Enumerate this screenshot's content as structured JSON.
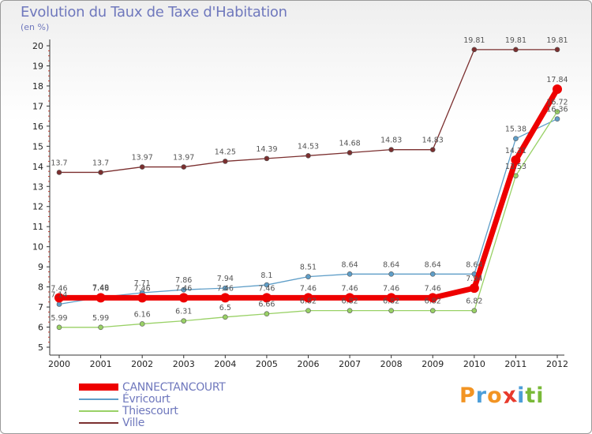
{
  "title": "Evolution du Taux de Taxe d'Habitation",
  "unit_label": "(en %)",
  "brand": {
    "text": "Proxiti",
    "letters": [
      {
        "ch": "P",
        "color": "#f29423"
      },
      {
        "ch": "r",
        "color": "#4c9ed9"
      },
      {
        "ch": "o",
        "color": "#f29423"
      },
      {
        "ch": "x",
        "color": "#e83a2c"
      },
      {
        "ch": "i",
        "color": "#4c9ed9"
      },
      {
        "ch": "t",
        "color": "#79b938"
      },
      {
        "ch": "i",
        "color": "#79b938"
      }
    ]
  },
  "chart_data": {
    "type": "line",
    "title": "Evolution du Taux de Taxe d'Habitation",
    "ylabel": "(en %)",
    "xlabel": "",
    "ylim": [
      5,
      20
    ],
    "yticks": [
      5,
      6,
      7,
      8,
      9,
      10,
      11,
      12,
      13,
      14,
      15,
      16,
      17,
      18,
      19,
      20
    ],
    "categories": [
      "2000",
      "2001",
      "2002",
      "2003",
      "2004",
      "2005",
      "2006",
      "2007",
      "2008",
      "2009",
      "2010",
      "2011",
      "2012"
    ],
    "legend_position": "bottom-left",
    "series": [
      {
        "name": "Ville",
        "color": "#7b2f2f",
        "values": [
          13.7,
          13.7,
          13.97,
          13.97,
          14.25,
          14.39,
          14.53,
          14.68,
          14.83,
          14.83,
          19.81,
          19.81,
          19.81
        ],
        "labels": [
          "13.7",
          "13.7",
          "13.97",
          "13.97",
          "14.25",
          "14.39",
          "14.53",
          "14.68",
          "14.83",
          "14.83",
          "19.81",
          "19.81",
          "19.81"
        ]
      },
      {
        "name": "Évricourt",
        "color": "#5f9ec8",
        "values": [
          7.14,
          7.49,
          7.71,
          7.86,
          7.94,
          8.1,
          8.51,
          8.64,
          8.64,
          8.64,
          8.64,
          15.38,
          16.36
        ],
        "labels": [
          "7.14",
          "7.49",
          "7.71",
          "7.86",
          "7.94",
          "8.1",
          "8.51",
          "8.64",
          "8.64",
          "8.64",
          "8.64",
          "15.38",
          "16.36"
        ]
      },
      {
        "name": "Thiescourt",
        "color": "#99d166",
        "values": [
          5.99,
          5.99,
          6.16,
          6.31,
          6.5,
          6.66,
          6.82,
          6.82,
          6.82,
          6.82,
          6.82,
          13.53,
          16.72
        ],
        "labels": [
          "5.99",
          "5.99",
          "6.16",
          "6.31",
          "6.5",
          "6.66",
          "6.82",
          "6.82",
          "6.82",
          "6.82",
          "6.82",
          "13.53",
          "16.72"
        ]
      },
      {
        "name": "CANNECTANCOURT",
        "color": "#ee0000",
        "values": [
          7.46,
          7.46,
          7.46,
          7.46,
          7.46,
          7.46,
          7.46,
          7.46,
          7.46,
          7.46,
          7.94,
          14.31,
          17.84
        ],
        "labels": [
          "7.46",
          "7.46",
          "7.46",
          "7.46",
          "7.46",
          "7.46",
          "7.46",
          "7.46",
          "7.46",
          "7.46",
          "7.94",
          "14.31",
          "17.84"
        ]
      }
    ],
    "legend": [
      "CANNECTANCOURT",
      "Évricourt",
      "Thiescourt",
      "Ville"
    ]
  }
}
